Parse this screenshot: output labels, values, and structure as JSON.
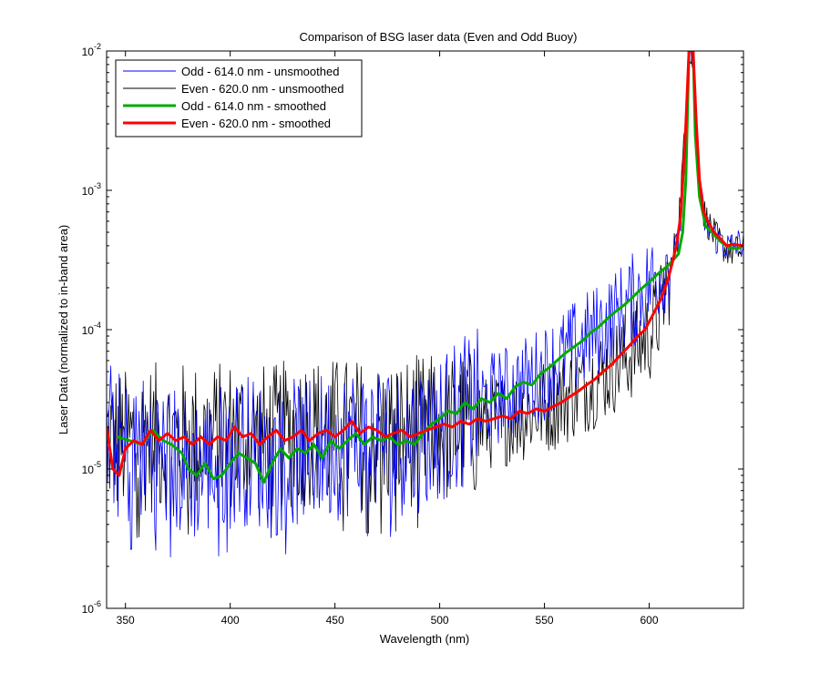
{
  "chart_data": {
    "type": "line",
    "title": "Comparison of BSG laser data (Even and Odd Buoy)",
    "xlabel": "Wavelength (nm)",
    "ylabel": "Laser Data (normalized to in-band area)",
    "xlim": [
      341,
      645
    ],
    "ylim": [
      1e-06,
      0.01
    ],
    "yscale": "log",
    "x_ticks": [
      350,
      400,
      450,
      500,
      550,
      600
    ],
    "y_ticks": [
      {
        "base": "10",
        "exp": "-6",
        "value": 1e-06
      },
      {
        "base": "10",
        "exp": "-5",
        "value": 1e-05
      },
      {
        "base": "10",
        "exp": "-4",
        "value": 0.0001
      },
      {
        "base": "10",
        "exp": "-3",
        "value": 0.001
      },
      {
        "base": "10",
        "exp": "-2",
        "value": 0.01
      }
    ],
    "grid": false,
    "legend_position": "top-left",
    "series": [
      {
        "name": "Odd - 614.0 nm - unsmoothed",
        "color": "#0000ff",
        "style": "thin",
        "noisy": true,
        "points": [
          [
            341,
            1.8e-05
          ],
          [
            350,
            1.3e-05
          ],
          [
            360,
            1.4e-05
          ],
          [
            370,
            1.2e-05
          ],
          [
            380,
            1e-05
          ],
          [
            390,
            1.1e-05
          ],
          [
            400,
            1.3e-05
          ],
          [
            410,
            1.4e-05
          ],
          [
            420,
            1.1e-05
          ],
          [
            430,
            1.3e-05
          ],
          [
            440,
            1.4e-05
          ],
          [
            450,
            1.5e-05
          ],
          [
            460,
            1.6e-05
          ],
          [
            470,
            1.7e-05
          ],
          [
            480,
            1.6e-05
          ],
          [
            490,
            1.7e-05
          ],
          [
            500,
            2e-05
          ],
          [
            510,
            2.5e-05
          ],
          [
            520,
            3e-05
          ],
          [
            530,
            3.4e-05
          ],
          [
            540,
            4e-05
          ],
          [
            550,
            5e-05
          ],
          [
            560,
            6.5e-05
          ],
          [
            570,
            8.5e-05
          ],
          [
            580,
            0.00011
          ],
          [
            590,
            0.00015
          ],
          [
            600,
            0.00021
          ],
          [
            605,
            0.00026
          ],
          [
            610,
            0.00032
          ],
          [
            613,
            0.00038
          ],
          [
            615,
            0.0006
          ],
          [
            617,
            0.002
          ],
          [
            619,
            0.01
          ],
          [
            621,
            0.01
          ],
          [
            622,
            0.003
          ],
          [
            624,
            0.001
          ],
          [
            627,
            0.00055
          ],
          [
            632,
            0.00045
          ],
          [
            637,
            0.00039
          ],
          [
            645,
            0.00042
          ]
        ]
      },
      {
        "name": "Even - 620.0 nm - unsmoothed",
        "color": "#000000",
        "style": "thin",
        "noisy": true,
        "points": [
          [
            341,
            1.7e-05
          ],
          [
            350,
            1.5e-05
          ],
          [
            360,
            1.7e-05
          ],
          [
            370,
            1.6e-05
          ],
          [
            380,
            1.7e-05
          ],
          [
            390,
            1.6e-05
          ],
          [
            400,
            1.8e-05
          ],
          [
            410,
            1.7e-05
          ],
          [
            420,
            1.6e-05
          ],
          [
            430,
            1.8e-05
          ],
          [
            440,
            1.9e-05
          ],
          [
            450,
            1.8e-05
          ],
          [
            460,
            1.8e-05
          ],
          [
            470,
            1.7e-05
          ],
          [
            480,
            1.8e-05
          ],
          [
            490,
            1.9e-05
          ],
          [
            500,
            1.9e-05
          ],
          [
            510,
            2e-05
          ],
          [
            520,
            2.1e-05
          ],
          [
            530,
            2.3e-05
          ],
          [
            540,
            2.5e-05
          ],
          [
            550,
            2.8e-05
          ],
          [
            560,
            3.3e-05
          ],
          [
            570,
            4e-05
          ],
          [
            580,
            5e-05
          ],
          [
            590,
            6.5e-05
          ],
          [
            600,
            9e-05
          ],
          [
            605,
            0.00013
          ],
          [
            610,
            0.00025
          ],
          [
            614,
            0.0006
          ],
          [
            617,
            0.0025
          ],
          [
            619,
            0.01
          ],
          [
            621,
            0.01
          ],
          [
            623,
            0.002
          ],
          [
            626,
            0.0007
          ],
          [
            630,
            0.0005
          ],
          [
            635,
            0.0004
          ],
          [
            640,
            0.00036
          ],
          [
            645,
            0.00038
          ]
        ]
      },
      {
        "name": "Odd - 614.0 nm - smoothed",
        "color": "#00aa00",
        "style": "thick",
        "noisy": false,
        "points": [
          [
            346,
            1.7e-05
          ],
          [
            352,
            1.6e-05
          ],
          [
            358,
            1.5e-05
          ],
          [
            363,
            1.9e-05
          ],
          [
            368,
            1.6e-05
          ],
          [
            372,
            1.5e-05
          ],
          [
            377,
            1.3e-05
          ],
          [
            380,
            1e-05
          ],
          [
            384,
            9e-06
          ],
          [
            388,
            1.1e-05
          ],
          [
            392,
            8.5e-06
          ],
          [
            396,
            9e-06
          ],
          [
            400,
            1.1e-05
          ],
          [
            404,
            1.3e-05
          ],
          [
            408,
            1.2e-05
          ],
          [
            412,
            1.1e-05
          ],
          [
            416,
            8e-06
          ],
          [
            420,
            1.1e-05
          ],
          [
            424,
            1.4e-05
          ],
          [
            428,
            1.2e-05
          ],
          [
            432,
            1.4e-05
          ],
          [
            436,
            1.3e-05
          ],
          [
            440,
            1.5e-05
          ],
          [
            444,
            1.2e-05
          ],
          [
            448,
            1.6e-05
          ],
          [
            452,
            1.4e-05
          ],
          [
            456,
            1.6e-05
          ],
          [
            460,
            1.8e-05
          ],
          [
            464,
            1.5e-05
          ],
          [
            468,
            1.7e-05
          ],
          [
            472,
            1.6e-05
          ],
          [
            476,
            1.7e-05
          ],
          [
            480,
            1.5e-05
          ],
          [
            484,
            1.6e-05
          ],
          [
            488,
            1.5e-05
          ],
          [
            492,
            1.8e-05
          ],
          [
            496,
            2.1e-05
          ],
          [
            500,
            2.3e-05
          ],
          [
            504,
            2.6e-05
          ],
          [
            508,
            2.5e-05
          ],
          [
            512,
            3e-05
          ],
          [
            516,
            2.7e-05
          ],
          [
            520,
            3.2e-05
          ],
          [
            524,
            3e-05
          ],
          [
            528,
            3.5e-05
          ],
          [
            532,
            3.2e-05
          ],
          [
            536,
            3.9e-05
          ],
          [
            540,
            4.2e-05
          ],
          [
            544,
            4e-05
          ],
          [
            548,
            4.8e-05
          ],
          [
            552,
            5.3e-05
          ],
          [
            556,
            6e-05
          ],
          [
            560,
            6.8e-05
          ],
          [
            564,
            7.5e-05
          ],
          [
            568,
            8.3e-05
          ],
          [
            572,
            9.5e-05
          ],
          [
            576,
            0.000105
          ],
          [
            580,
            0.00012
          ],
          [
            584,
            0.000135
          ],
          [
            588,
            0.00015
          ],
          [
            592,
            0.00017
          ],
          [
            596,
            0.000195
          ],
          [
            600,
            0.00022
          ],
          [
            604,
            0.00025
          ],
          [
            608,
            0.00028
          ],
          [
            611,
            0.00031
          ],
          [
            614,
            0.00035
          ],
          [
            616,
            0.0005
          ],
          [
            617.5,
            0.0012
          ],
          [
            619,
            0.01
          ],
          [
            621,
            0.01
          ],
          [
            622,
            0.0025
          ],
          [
            624,
            0.0009
          ],
          [
            627,
            0.00055
          ],
          [
            630,
            0.0005
          ],
          [
            634,
            0.00043
          ],
          [
            638,
            0.00039
          ],
          [
            642,
            0.00038
          ],
          [
            645,
            0.0004
          ]
        ]
      },
      {
        "name": "Even - 620.0 nm - smoothed",
        "color": "#ff0000",
        "style": "thick",
        "noisy": false,
        "points": [
          [
            341,
            2e-05
          ],
          [
            344,
            1e-05
          ],
          [
            347,
            9e-06
          ],
          [
            350,
            1.4e-05
          ],
          [
            354,
            1.6e-05
          ],
          [
            358,
            1.5e-05
          ],
          [
            362,
            1.9e-05
          ],
          [
            366,
            1.6e-05
          ],
          [
            370,
            1.8e-05
          ],
          [
            374,
            1.6e-05
          ],
          [
            378,
            1.7e-05
          ],
          [
            382,
            1.5e-05
          ],
          [
            386,
            1.7e-05
          ],
          [
            390,
            1.5e-05
          ],
          [
            394,
            1.7e-05
          ],
          [
            398,
            1.6e-05
          ],
          [
            402,
            2e-05
          ],
          [
            406,
            1.7e-05
          ],
          [
            410,
            1.8e-05
          ],
          [
            414,
            1.5e-05
          ],
          [
            418,
            1.7e-05
          ],
          [
            422,
            1.9e-05
          ],
          [
            426,
            1.6e-05
          ],
          [
            430,
            1.7e-05
          ],
          [
            434,
            1.9e-05
          ],
          [
            438,
            1.6e-05
          ],
          [
            442,
            1.8e-05
          ],
          [
            446,
            1.9e-05
          ],
          [
            450,
            1.7e-05
          ],
          [
            454,
            1.9e-05
          ],
          [
            458,
            2.2e-05
          ],
          [
            462,
            1.8e-05
          ],
          [
            466,
            2e-05
          ],
          [
            470,
            1.9e-05
          ],
          [
            474,
            1.7e-05
          ],
          [
            478,
            1.8e-05
          ],
          [
            482,
            1.9e-05
          ],
          [
            486,
            1.7e-05
          ],
          [
            490,
            1.8e-05
          ],
          [
            494,
            1.9e-05
          ],
          [
            498,
            2e-05
          ],
          [
            502,
            2.1e-05
          ],
          [
            506,
            2e-05
          ],
          [
            510,
            2.2e-05
          ],
          [
            514,
            2.1e-05
          ],
          [
            518,
            2.3e-05
          ],
          [
            522,
            2.2e-05
          ],
          [
            526,
            2.3e-05
          ],
          [
            530,
            2.4e-05
          ],
          [
            534,
            2.3e-05
          ],
          [
            538,
            2.6e-05
          ],
          [
            542,
            2.5e-05
          ],
          [
            546,
            2.7e-05
          ],
          [
            550,
            2.6e-05
          ],
          [
            554,
            2.8e-05
          ],
          [
            558,
            3e-05
          ],
          [
            562,
            3.3e-05
          ],
          [
            566,
            3.6e-05
          ],
          [
            570,
            4e-05
          ],
          [
            574,
            4.4e-05
          ],
          [
            578,
            5e-05
          ],
          [
            582,
            5.6e-05
          ],
          [
            586,
            6.5e-05
          ],
          [
            590,
            7.5e-05
          ],
          [
            594,
            8.8e-05
          ],
          [
            598,
            0.0001
          ],
          [
            602,
            0.00013
          ],
          [
            606,
            0.00017
          ],
          [
            609,
            0.00023
          ],
          [
            611,
            0.0003
          ],
          [
            613,
            0.0004
          ],
          [
            615,
            0.00065
          ],
          [
            617,
            0.002
          ],
          [
            619,
            0.01
          ],
          [
            621,
            0.01
          ],
          [
            622.5,
            0.003
          ],
          [
            624,
            0.0012
          ],
          [
            626,
            0.0007
          ],
          [
            628,
            0.0006
          ],
          [
            631,
            0.0005
          ],
          [
            634,
            0.00045
          ],
          [
            637,
            0.0004
          ],
          [
            640,
            0.00041
          ],
          [
            645,
            0.0004
          ]
        ]
      }
    ]
  }
}
